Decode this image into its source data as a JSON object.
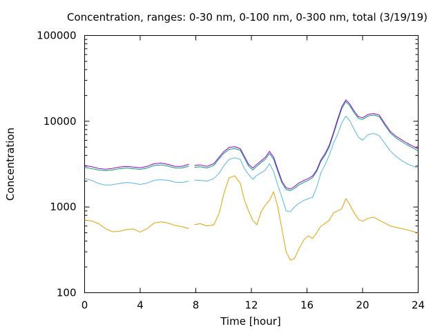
{
  "chart_data": {
    "type": "line",
    "title": "Concentration, ranges: 0-30 nm, 0-100 nm, 0-300 nm, total (3/19/19)",
    "xlabel": "Time [hour]",
    "ylabel": "Concentration",
    "xlim": [
      0,
      24
    ],
    "ylim": [
      100,
      100000
    ],
    "yscale": "log",
    "grid": false,
    "legend": "none",
    "x_ticks": [
      {
        "value": 0,
        "label": "0"
      },
      {
        "value": 4,
        "label": "4"
      },
      {
        "value": 8,
        "label": "8"
      },
      {
        "value": 12,
        "label": "12"
      },
      {
        "value": 16,
        "label": "16"
      },
      {
        "value": 20,
        "label": "20"
      },
      {
        "value": 24,
        "label": "24"
      }
    ],
    "y_ticks": [
      {
        "value": 100,
        "label": "100"
      },
      {
        "value": 1000,
        "label": "1000"
      },
      {
        "value": 10000,
        "label": "10000"
      },
      {
        "value": 100000,
        "label": "100000"
      }
    ],
    "series": [
      {
        "color": "#e69f00",
        "segments": [
          [
            [
              0,
              700
            ],
            [
              0.5,
              690
            ],
            [
              1,
              640
            ],
            [
              1.5,
              560
            ],
            [
              2,
              515
            ],
            [
              2.5,
              520
            ],
            [
              3,
              545
            ],
            [
              3.5,
              555
            ],
            [
              4,
              510
            ],
            [
              4.5,
              560
            ],
            [
              5,
              650
            ],
            [
              5.5,
              670
            ],
            [
              6,
              650
            ],
            [
              6.5,
              610
            ],
            [
              7,
              590
            ],
            [
              7.5,
              560
            ]
          ],
          [
            [
              7.9,
              620
            ],
            [
              8.3,
              640
            ],
            [
              8.8,
              600
            ],
            [
              9.3,
              620
            ],
            [
              9.7,
              860
            ],
            [
              10,
              1400
            ],
            [
              10.4,
              2200
            ],
            [
              10.8,
              2300
            ],
            [
              11.2,
              1900
            ],
            [
              11.5,
              1200
            ],
            [
              11.8,
              900
            ],
            [
              12.1,
              700
            ],
            [
              12.4,
              620
            ],
            [
              12.7,
              880
            ],
            [
              13,
              1050
            ],
            [
              13.3,
              1200
            ],
            [
              13.6,
              1500
            ],
            [
              13.9,
              1000
            ],
            [
              14.2,
              550
            ],
            [
              14.5,
              300
            ],
            [
              14.8,
              240
            ],
            [
              15.1,
              250
            ],
            [
              15.4,
              320
            ],
            [
              15.8,
              420
            ],
            [
              16.1,
              460
            ],
            [
              16.4,
              430
            ],
            [
              16.7,
              500
            ],
            [
              17,
              600
            ],
            [
              17.3,
              640
            ],
            [
              17.6,
              700
            ],
            [
              17.9,
              850
            ],
            [
              18.2,
              900
            ],
            [
              18.5,
              950
            ],
            [
              18.8,
              1250
            ],
            [
              19.1,
              1050
            ],
            [
              19.4,
              850
            ],
            [
              19.7,
              720
            ],
            [
              20,
              680
            ],
            [
              20.4,
              740
            ],
            [
              20.8,
              760
            ],
            [
              21.2,
              700
            ],
            [
              21.6,
              650
            ],
            [
              22,
              600
            ],
            [
              22.4,
              580
            ],
            [
              22.8,
              560
            ],
            [
              23.2,
              540
            ],
            [
              23.6,
              520
            ],
            [
              24,
              500
            ]
          ]
        ]
      },
      {
        "color": "#56b4e9",
        "segments": [
          [
            [
              0,
              2150
            ],
            [
              0.5,
              2050
            ],
            [
              1,
              1880
            ],
            [
              1.5,
              1800
            ],
            [
              2,
              1820
            ],
            [
              2.5,
              1880
            ],
            [
              3,
              1930
            ],
            [
              3.5,
              1900
            ],
            [
              4,
              1830
            ],
            [
              4.5,
              1900
            ],
            [
              5,
              2050
            ],
            [
              5.5,
              2080
            ],
            [
              6,
              2050
            ],
            [
              6.5,
              1950
            ],
            [
              7,
              1930
            ],
            [
              7.5,
              2000
            ]
          ],
          [
            [
              7.9,
              2050
            ],
            [
              8.3,
              2050
            ],
            [
              8.8,
              2000
            ],
            [
              9.3,
              2150
            ],
            [
              9.7,
              2500
            ],
            [
              10,
              3000
            ],
            [
              10.4,
              3600
            ],
            [
              10.8,
              3750
            ],
            [
              11.2,
              3600
            ],
            [
              11.5,
              2800
            ],
            [
              11.8,
              2400
            ],
            [
              12.1,
              2100
            ],
            [
              12.4,
              2350
            ],
            [
              12.7,
              2500
            ],
            [
              13,
              2700
            ],
            [
              13.3,
              3200
            ],
            [
              13.6,
              2600
            ],
            [
              13.9,
              1800
            ],
            [
              14.2,
              1300
            ],
            [
              14.5,
              900
            ],
            [
              14.8,
              880
            ],
            [
              15.1,
              1000
            ],
            [
              15.4,
              1100
            ],
            [
              15.8,
              1200
            ],
            [
              16.1,
              1250
            ],
            [
              16.4,
              1300
            ],
            [
              16.7,
              1700
            ],
            [
              17,
              2500
            ],
            [
              17.3,
              3100
            ],
            [
              17.6,
              4000
            ],
            [
              17.9,
              5500
            ],
            [
              18.2,
              7000
            ],
            [
              18.5,
              9500
            ],
            [
              18.8,
              11500
            ],
            [
              19.1,
              10000
            ],
            [
              19.4,
              8000
            ],
            [
              19.7,
              6500
            ],
            [
              20,
              6000
            ],
            [
              20.4,
              7000
            ],
            [
              20.8,
              7200
            ],
            [
              21.2,
              6800
            ],
            [
              21.6,
              5500
            ],
            [
              22,
              4500
            ],
            [
              22.4,
              3900
            ],
            [
              22.8,
              3500
            ],
            [
              23.2,
              3200
            ],
            [
              23.6,
              3000
            ],
            [
              24,
              2850
            ]
          ]
        ]
      },
      {
        "color": "#009e73",
        "segments": [
          [
            [
              0,
              2900
            ],
            [
              0.5,
              2800
            ],
            [
              1,
              2700
            ],
            [
              1.5,
              2650
            ],
            [
              2,
              2700
            ],
            [
              2.5,
              2800
            ],
            [
              3,
              2850
            ],
            [
              3.5,
              2800
            ],
            [
              4,
              2750
            ],
            [
              4.5,
              2850
            ],
            [
              5,
              3050
            ],
            [
              5.5,
              3100
            ],
            [
              6,
              3000
            ],
            [
              6.5,
              2850
            ],
            [
              7,
              2850
            ],
            [
              7.5,
              3000
            ]
          ],
          [
            [
              7.9,
              2900
            ],
            [
              8.3,
              2950
            ],
            [
              8.8,
              2850
            ],
            [
              9.3,
              3050
            ],
            [
              9.7,
              3700
            ],
            [
              10,
              4200
            ],
            [
              10.4,
              4700
            ],
            [
              10.8,
              4800
            ],
            [
              11.2,
              4600
            ],
            [
              11.5,
              3700
            ],
            [
              11.8,
              3000
            ],
            [
              12.1,
              2700
            ],
            [
              12.4,
              3000
            ],
            [
              12.7,
              3300
            ],
            [
              13,
              3600
            ],
            [
              13.3,
              4200
            ],
            [
              13.6,
              3600
            ],
            [
              13.9,
              2600
            ],
            [
              14.2,
              1900
            ],
            [
              14.5,
              1600
            ],
            [
              14.8,
              1550
            ],
            [
              15.1,
              1650
            ],
            [
              15.4,
              1800
            ],
            [
              15.8,
              1950
            ],
            [
              16.1,
              2050
            ],
            [
              16.4,
              2200
            ],
            [
              16.7,
              2600
            ],
            [
              17,
              3400
            ],
            [
              17.3,
              4000
            ],
            [
              17.6,
              5000
            ],
            [
              17.9,
              7000
            ],
            [
              18.2,
              10000
            ],
            [
              18.5,
              14000
            ],
            [
              18.8,
              17000
            ],
            [
              19.1,
              15000
            ],
            [
              19.4,
              12500
            ],
            [
              19.7,
              10800
            ],
            [
              20,
              10500
            ],
            [
              20.4,
              11500
            ],
            [
              20.8,
              11800
            ],
            [
              21.2,
              11300
            ],
            [
              21.6,
              9000
            ],
            [
              22,
              7300
            ],
            [
              22.4,
              6400
            ],
            [
              22.8,
              5800
            ],
            [
              23.2,
              5300
            ],
            [
              23.6,
              4900
            ],
            [
              24,
              4500
            ]
          ]
        ]
      },
      {
        "color": "#9400d3",
        "segments": [
          [
            [
              0,
              3050
            ],
            [
              0.5,
              2950
            ],
            [
              1,
              2820
            ],
            [
              1.5,
              2760
            ],
            [
              2,
              2820
            ],
            [
              2.5,
              2920
            ],
            [
              3,
              2980
            ],
            [
              3.5,
              2920
            ],
            [
              4,
              2870
            ],
            [
              4.5,
              2980
            ],
            [
              5,
              3200
            ],
            [
              5.5,
              3250
            ],
            [
              6,
              3140
            ],
            [
              6.5,
              2980
            ],
            [
              7,
              2980
            ],
            [
              7.5,
              3150
            ]
          ],
          [
            [
              7.9,
              3050
            ],
            [
              8.3,
              3100
            ],
            [
              8.8,
              2980
            ],
            [
              9.3,
              3200
            ],
            [
              9.7,
              3850
            ],
            [
              10,
              4400
            ],
            [
              10.4,
              4950
            ],
            [
              10.8,
              5050
            ],
            [
              11.2,
              4800
            ],
            [
              11.5,
              3900
            ],
            [
              11.8,
              3150
            ],
            [
              12.1,
              2850
            ],
            [
              12.4,
              3150
            ],
            [
              12.7,
              3450
            ],
            [
              13,
              3800
            ],
            [
              13.3,
              4450
            ],
            [
              13.6,
              3800
            ],
            [
              13.9,
              2750
            ],
            [
              14.2,
              2000
            ],
            [
              14.5,
              1680
            ],
            [
              14.8,
              1620
            ],
            [
              15.1,
              1730
            ],
            [
              15.4,
              1900
            ],
            [
              15.8,
              2050
            ],
            [
              16.1,
              2150
            ],
            [
              16.4,
              2300
            ],
            [
              16.7,
              2700
            ],
            [
              17,
              3550
            ],
            [
              17.3,
              4200
            ],
            [
              17.6,
              5250
            ],
            [
              17.9,
              7300
            ],
            [
              18.2,
              10500
            ],
            [
              18.5,
              14700
            ],
            [
              18.8,
              17800
            ],
            [
              19.1,
              15700
            ],
            [
              19.4,
              13100
            ],
            [
              19.7,
              11300
            ],
            [
              20,
              11000
            ],
            [
              20.4,
              12000
            ],
            [
              20.8,
              12300
            ],
            [
              21.2,
              11800
            ],
            [
              21.6,
              9400
            ],
            [
              22,
              7600
            ],
            [
              22.4,
              6700
            ],
            [
              22.8,
              6100
            ],
            [
              23.2,
              5550
            ],
            [
              23.6,
              5150
            ],
            [
              24,
              4750
            ]
          ]
        ]
      }
    ]
  }
}
